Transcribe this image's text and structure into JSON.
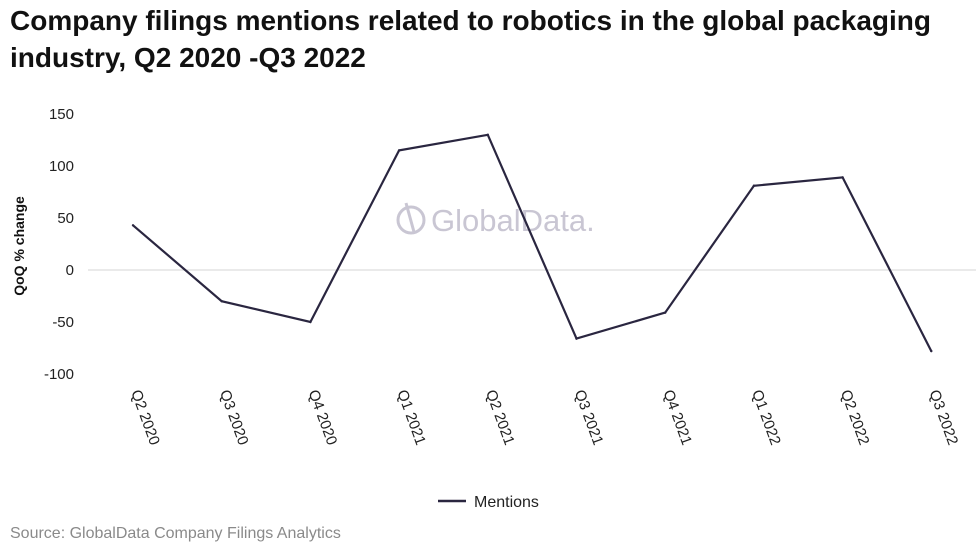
{
  "chart_data": {
    "type": "line",
    "title": "Company filings mentions related to robotics in the global packaging industry, Q2 2020 -Q3 2022",
    "xlabel": "",
    "ylabel": "QoQ % change",
    "categories": [
      "Q2 2020",
      "Q3 2020",
      "Q4 2020",
      "Q1 2021",
      "Q2 2021",
      "Q3 2021",
      "Q4 2021",
      "Q1 2022",
      "Q2 2022",
      "Q3 2022"
    ],
    "series": [
      {
        "name": "Mentions",
        "color": "#2a2640",
        "values": [
          43,
          -30,
          -50,
          115,
          130,
          -66,
          -41,
          81,
          89,
          -78
        ]
      }
    ],
    "ylim": [
      -100,
      150
    ],
    "yticks": [
      150,
      100,
      50,
      0,
      -50,
      -100
    ],
    "grid": false,
    "zero_line": true,
    "legend_position": "bottom-center",
    "source": "Source: GlobalData Company Filings Analytics",
    "watermark": "GlobalData."
  }
}
